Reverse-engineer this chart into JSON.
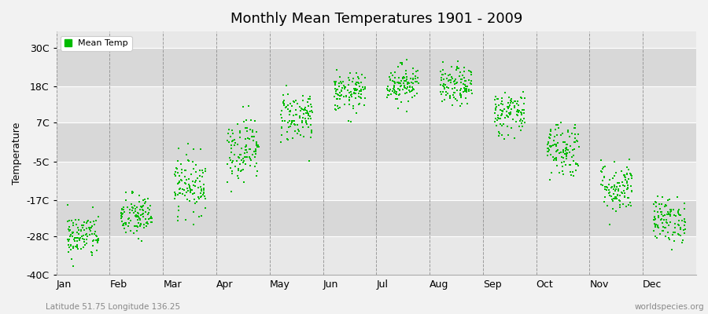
{
  "title": "Monthly Mean Temperatures 1901 - 2009",
  "ylabel": "Temperature",
  "subtitle_left": "Latitude 51.75 Longitude 136.25",
  "subtitle_right": "worldspecies.org",
  "ytick_labels": [
    "30C",
    "18C",
    "7C",
    "-5C",
    "-17C",
    "-28C",
    "-40C"
  ],
  "ytick_values": [
    30,
    18,
    7,
    -5,
    -17,
    -28,
    -40
  ],
  "ylim": [
    -40,
    35
  ],
  "months": [
    "Jan",
    "Feb",
    "Mar",
    "Apr",
    "May",
    "Jun",
    "Jul",
    "Aug",
    "Sep",
    "Oct",
    "Nov",
    "Dec"
  ],
  "dot_color": "#00bb00",
  "bg_color": "#f2f2f2",
  "legend_label": "Mean Temp",
  "monthly_mean_temps": [
    -28,
    -22,
    -12,
    -1,
    9,
    16,
    19,
    18,
    10,
    -1,
    -13,
    -23
  ],
  "monthly_std": [
    3.5,
    3.5,
    4.5,
    5.0,
    4.0,
    3.0,
    3.0,
    3.0,
    3.5,
    4.5,
    4.0,
    3.5
  ],
  "n_points": 109,
  "random_seed": 42,
  "band_colors": [
    "#e8e8e8",
    "#d8d8d8"
  ],
  "band_edges": [
    -40,
    -28,
    -17,
    -5,
    7,
    18,
    30
  ],
  "dot_size": 3.5,
  "title_fontsize": 13,
  "axis_fontsize": 9,
  "ylabel_fontsize": 9
}
